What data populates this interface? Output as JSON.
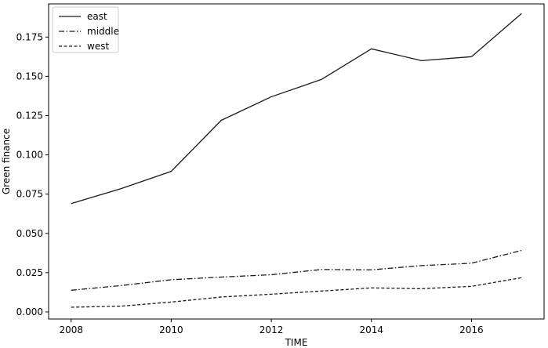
{
  "chart_data": {
    "type": "line",
    "title": "",
    "xlabel": "TIME",
    "ylabel": "Green finance",
    "x": [
      2008,
      2009,
      2010,
      2011,
      2012,
      2013,
      2014,
      2015,
      2016,
      2017
    ],
    "series": [
      {
        "name": "east",
        "style": "solid",
        "color": "#1a1a1a",
        "values": [
          0.069,
          0.0785,
          0.0895,
          0.122,
          0.137,
          0.148,
          0.1675,
          0.16,
          0.1625,
          0.19
        ]
      },
      {
        "name": "middle",
        "style": "dashdot",
        "color": "#1a1a1a",
        "values": [
          0.0138,
          0.0168,
          0.0205,
          0.0222,
          0.0237,
          0.027,
          0.0268,
          0.0295,
          0.031,
          0.0392
        ]
      },
      {
        "name": "west",
        "style": "dashed",
        "color": "#1a1a1a",
        "values": [
          0.003,
          0.0037,
          0.0063,
          0.0095,
          0.0113,
          0.0133,
          0.0153,
          0.0148,
          0.0163,
          0.0218
        ]
      }
    ],
    "xlim": [
      2007.55,
      2017.45
    ],
    "ylim": [
      -0.0045,
      0.1961
    ],
    "xticks": [
      2008,
      2010,
      2012,
      2014,
      2016
    ],
    "xtick_labels": [
      "2008",
      "2010",
      "2012",
      "2014",
      "2016"
    ],
    "yticks": [
      0.0,
      0.025,
      0.05,
      0.075,
      0.1,
      0.125,
      0.15,
      0.175
    ],
    "ytick_labels": [
      "0.000",
      "0.025",
      "0.050",
      "0.075",
      "0.100",
      "0.125",
      "0.150",
      "0.175"
    ],
    "grid": false,
    "legend_position": "top-left"
  }
}
